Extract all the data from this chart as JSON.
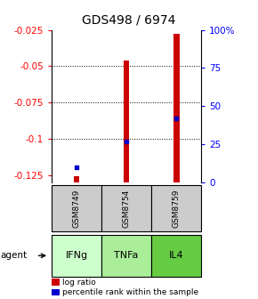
{
  "title": "GDS498 / 6974",
  "samples": [
    "GSM8749",
    "GSM8754",
    "GSM8759"
  ],
  "agents": [
    "IFNg",
    "TNFa",
    "IL4"
  ],
  "log_ratios": [
    -0.126,
    -0.046,
    -0.028
  ],
  "percentile_ranks_pct": [
    10,
    27,
    42
  ],
  "ylim_left": [
    -0.13,
    -0.025
  ],
  "ylim_right": [
    0,
    100
  ],
  "left_ticks": [
    -0.125,
    -0.1,
    -0.075,
    -0.05,
    -0.025
  ],
  "right_ticks": [
    0,
    25,
    50,
    75,
    100
  ],
  "bar_color": "#cc0000",
  "dot_color": "#0000cc",
  "agent_bg_colors": [
    "#ccffcc",
    "#aaee99",
    "#66cc44"
  ],
  "gsm_bg": "#cccccc",
  "legend_bar_label": "log ratio",
  "legend_dot_label": "percentile rank within the sample",
  "agent_label": "agent",
  "title_fontsize": 10,
  "tick_fontsize": 7.5,
  "label_fontsize": 7.5,
  "agent_fontsize": 8,
  "gsm_fontsize": 6.5
}
